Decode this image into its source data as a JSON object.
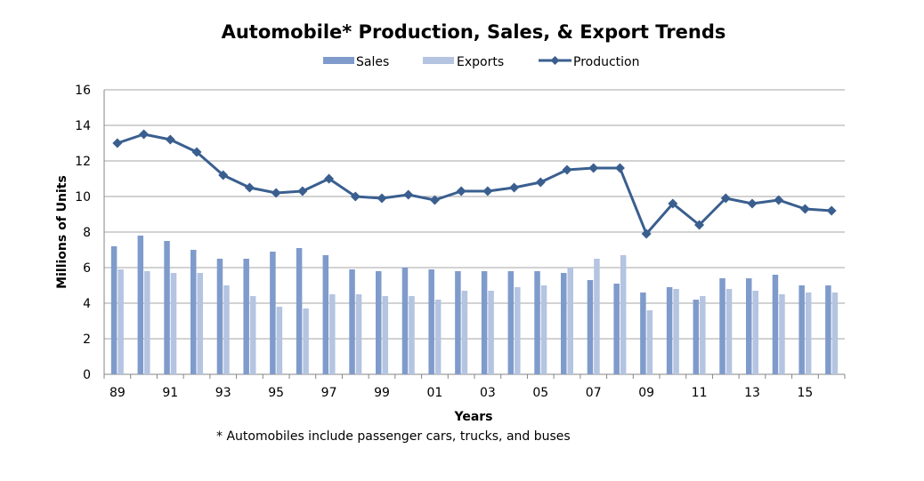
{
  "chart_data": {
    "type": "bar",
    "title": "Automobile* Production, Sales, & Export Trends",
    "xlabel": "Years",
    "ylabel": "Millions of Units",
    "ylim": [
      0,
      16
    ],
    "yticks": [
      0,
      2,
      4,
      6,
      8,
      10,
      12,
      14,
      16
    ],
    "grid": true,
    "legend_position": "top",
    "footnote": "* Automobiles include passenger cars, trucks, and buses",
    "categories": [
      "89",
      "90",
      "91",
      "92",
      "93",
      "94",
      "95",
      "96",
      "97",
      "98",
      "99",
      "00",
      "01",
      "02",
      "03",
      "04",
      "05",
      "06",
      "07",
      "08",
      "09",
      "10",
      "11",
      "12",
      "13",
      "14",
      "15",
      "16"
    ],
    "tick_labels": [
      "89",
      "91",
      "93",
      "95",
      "97",
      "99",
      "01",
      "03",
      "05",
      "07",
      "09",
      "11",
      "13",
      "15"
    ],
    "series": [
      {
        "name": "Sales",
        "kind": "bar",
        "color": "#7F9BCB",
        "values": [
          7.2,
          7.8,
          7.5,
          7.0,
          6.5,
          6.5,
          6.9,
          7.1,
          6.7,
          5.9,
          5.8,
          6.0,
          5.9,
          5.8,
          5.8,
          5.8,
          5.8,
          5.7,
          5.3,
          5.1,
          4.6,
          4.9,
          4.2,
          5.4,
          5.4,
          5.6,
          5.0,
          5.0
        ]
      },
      {
        "name": "Exports",
        "kind": "bar",
        "color": "#B4C4E1",
        "values": [
          5.9,
          5.8,
          5.7,
          5.7,
          5.0,
          4.4,
          3.8,
          3.7,
          4.5,
          4.5,
          4.4,
          4.4,
          4.2,
          4.7,
          4.7,
          4.9,
          5.0,
          6.0,
          6.5,
          6.7,
          3.6,
          4.8,
          4.4,
          4.8,
          4.7,
          4.5,
          4.6,
          4.6
        ]
      },
      {
        "name": "Production",
        "kind": "line",
        "color": "#3A5F8F",
        "values": [
          13.0,
          13.5,
          13.2,
          12.5,
          11.2,
          10.5,
          10.2,
          10.3,
          11.0,
          10.0,
          9.9,
          10.1,
          9.8,
          10.3,
          10.3,
          10.5,
          10.8,
          11.5,
          11.6,
          11.6,
          7.9,
          9.6,
          8.4,
          9.9,
          9.6,
          9.8,
          9.3,
          9.2
        ]
      }
    ]
  }
}
